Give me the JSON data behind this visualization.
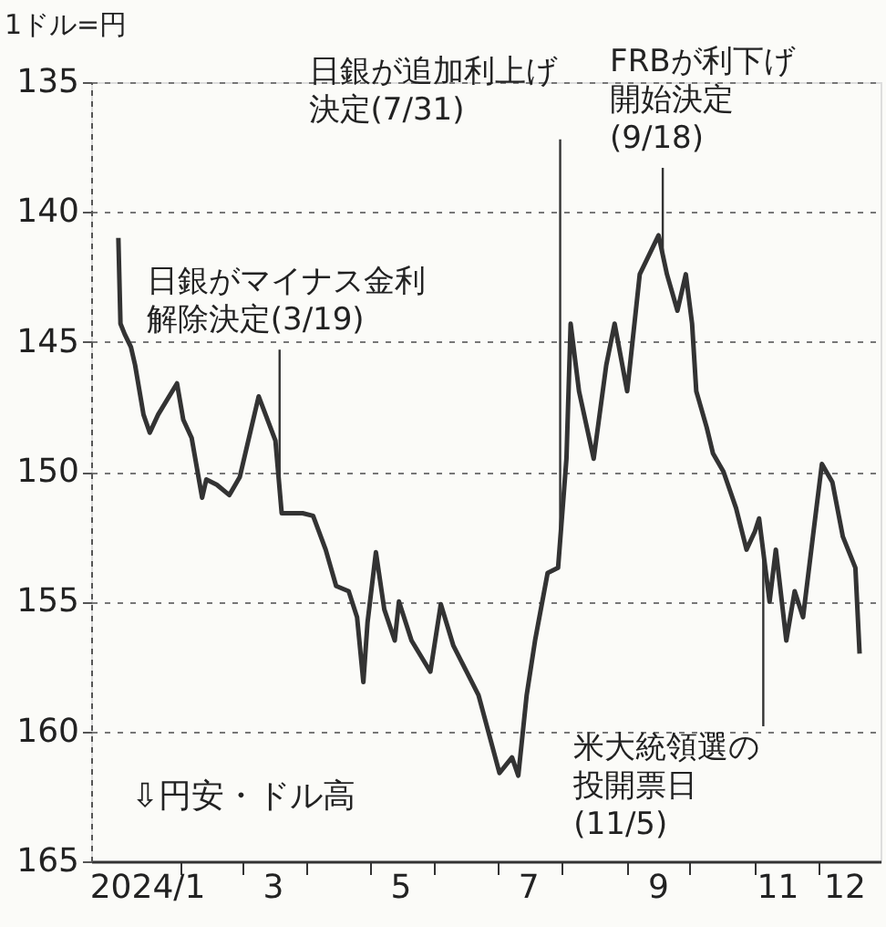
{
  "chart_data": {
    "type": "line",
    "ylabel": "1ドル=円",
    "xlim": [
      "2023-12-20",
      "2024-12-31"
    ],
    "xticks": [
      {
        "value": "2024-01-16",
        "label": "2024/1"
      },
      {
        "value": "2024-02-01",
        "label": null
      },
      {
        "value": "2024-03-01",
        "label": null
      },
      {
        "value": "2024-03-16",
        "label": "3"
      },
      {
        "value": "2024-04-01",
        "label": null
      },
      {
        "value": "2024-05-01",
        "label": null
      },
      {
        "value": "2024-05-16",
        "label": "5"
      },
      {
        "value": "2024-06-01",
        "label": null
      },
      {
        "value": "2024-07-01",
        "label": null
      },
      {
        "value": "2024-07-16",
        "label": "7"
      },
      {
        "value": "2024-08-01",
        "label": null
      },
      {
        "value": "2024-09-01",
        "label": null
      },
      {
        "value": "2024-09-16",
        "label": "9"
      },
      {
        "value": "2024-10-01",
        "label": null
      },
      {
        "value": "2024-11-01",
        "label": null
      },
      {
        "value": "2024-11-12",
        "label": "11"
      },
      {
        "value": "2024-12-01",
        "label": null
      },
      {
        "value": "2024-12-14",
        "label": "12"
      }
    ],
    "ylim": [
      165,
      135
    ],
    "yticks": [
      135,
      140,
      145,
      150,
      155,
      160,
      165
    ],
    "grid": "y",
    "line_style": "solid",
    "x": [
      "2024-01-02",
      "2024-01-03",
      "2024-01-05",
      "2024-01-08",
      "2024-01-10",
      "2024-01-14",
      "2024-01-17",
      "2024-01-21",
      "2024-01-30",
      "2024-02-02",
      "2024-02-06",
      "2024-02-11",
      "2024-02-13",
      "2024-02-18",
      "2024-02-24",
      "2024-02-29",
      "2024-03-09",
      "2024-03-17",
      "2024-03-20",
      "2024-03-30",
      "2024-04-04",
      "2024-04-10",
      "2024-04-15",
      "2024-04-21",
      "2024-04-25",
      "2024-04-28",
      "2024-04-30",
      "2024-05-04",
      "2024-05-08",
      "2024-05-13",
      "2024-05-15",
      "2024-05-21",
      "2024-05-30",
      "2024-06-04",
      "2024-06-10",
      "2024-06-22",
      "2024-07-02",
      "2024-07-08",
      "2024-07-11",
      "2024-07-15",
      "2024-07-19",
      "2024-07-25",
      "2024-07-30",
      "2024-08-03",
      "2024-08-05",
      "2024-08-09",
      "2024-08-16",
      "2024-08-22",
      "2024-08-26",
      "2024-09-01",
      "2024-09-07",
      "2024-09-16",
      "2024-09-20",
      "2024-09-25",
      "2024-09-29",
      "2024-10-02",
      "2024-10-04",
      "2024-10-09",
      "2024-10-12",
      "2024-10-17",
      "2024-10-23",
      "2024-10-28",
      "2024-11-01",
      "2024-11-03",
      "2024-11-08",
      "2024-11-11",
      "2024-11-16",
      "2024-11-20",
      "2024-11-24",
      "2024-11-29",
      "2024-12-03",
      "2024-12-08",
      "2024-12-13",
      "2024-12-19",
      "2024-12-21"
    ],
    "series": [
      {
        "color": "#333333",
        "values": [
          141.0,
          144.3,
          144.7,
          145.2,
          145.9,
          147.8,
          148.5,
          147.8,
          146.6,
          148.0,
          148.7,
          151.0,
          150.3,
          150.5,
          150.9,
          150.2,
          147.1,
          148.8,
          151.6,
          151.6,
          151.7,
          153.0,
          154.4,
          154.6,
          155.6,
          158.1,
          155.8,
          153.1,
          155.3,
          156.5,
          155.0,
          156.5,
          157.7,
          155.1,
          156.7,
          158.6,
          161.6,
          161.0,
          161.7,
          158.6,
          156.5,
          153.9,
          153.7,
          149.5,
          144.3,
          146.9,
          149.5,
          145.9,
          144.3,
          146.9,
          142.4,
          140.9,
          142.4,
          143.8,
          142.4,
          144.3,
          146.9,
          148.3,
          149.3,
          150.0,
          151.4,
          153.0,
          152.3,
          151.8,
          155.0,
          153.0,
          156.5,
          154.6,
          155.6,
          152.3,
          149.7,
          150.4,
          152.5,
          153.7,
          157.0
        ]
      }
    ],
    "annotations": [
      {
        "text": "日銀がマイナス金利解除決定(3/19)",
        "x": "2024-03-19",
        "y": 150.7
      },
      {
        "text": "日銀が追加利上げ決定(7/31)",
        "x": "2024-07-31",
        "y": 152.6
      },
      {
        "text": "FRBが利下げ開始決定(9/18)",
        "x": "2024-09-18",
        "y": 141.6
      },
      {
        "text": "米大統領選の投開票日(11/5)",
        "x": "2024-11-05",
        "y": 153.1
      },
      "⇩円安・ドル高"
    ]
  }
}
